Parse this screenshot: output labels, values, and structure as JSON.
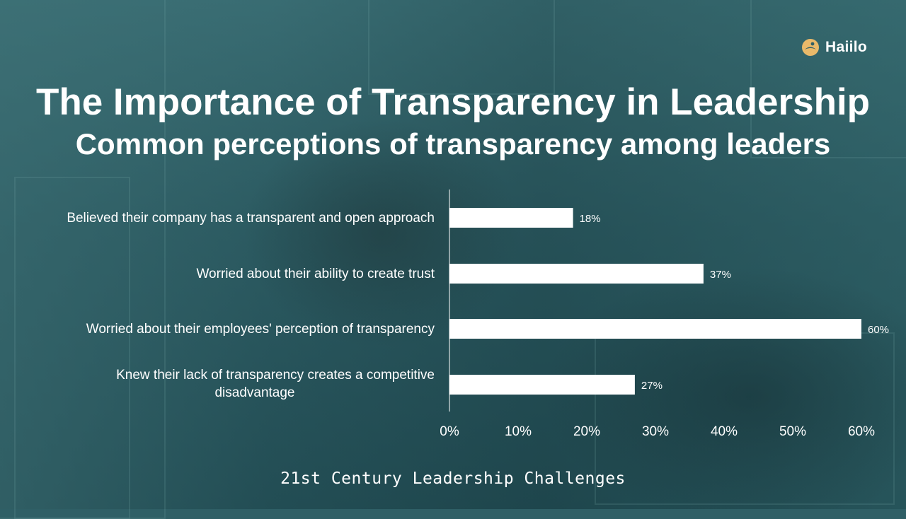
{
  "logo": {
    "text": "Haiilo",
    "color": "#e9b96a"
  },
  "header": {
    "title": "The Importance of Transparency in Leadership",
    "subtitle": "Common perceptions of transparency among leaders"
  },
  "footer": {
    "text": "21st Century Leadership Challenges"
  },
  "chart_data": {
    "type": "bar",
    "orientation": "horizontal",
    "categories": [
      "Believed their company has a transparent and open approach",
      "Worried about their ability to create trust",
      "Worried about their employees' perception of transparency",
      "Knew their lack of transparency creates a competitive disadvantage"
    ],
    "values": [
      18,
      37,
      60,
      27
    ],
    "value_labels": [
      "18%",
      "37%",
      "60%",
      "27%"
    ],
    "xlim": [
      0,
      60
    ],
    "x_ticks": [
      0,
      10,
      20,
      30,
      40,
      50,
      60
    ],
    "x_tick_labels": [
      "0%",
      "10%",
      "20%",
      "30%",
      "40%",
      "50%",
      "60%"
    ],
    "bar_color": "#ffffff",
    "grid": false
  }
}
